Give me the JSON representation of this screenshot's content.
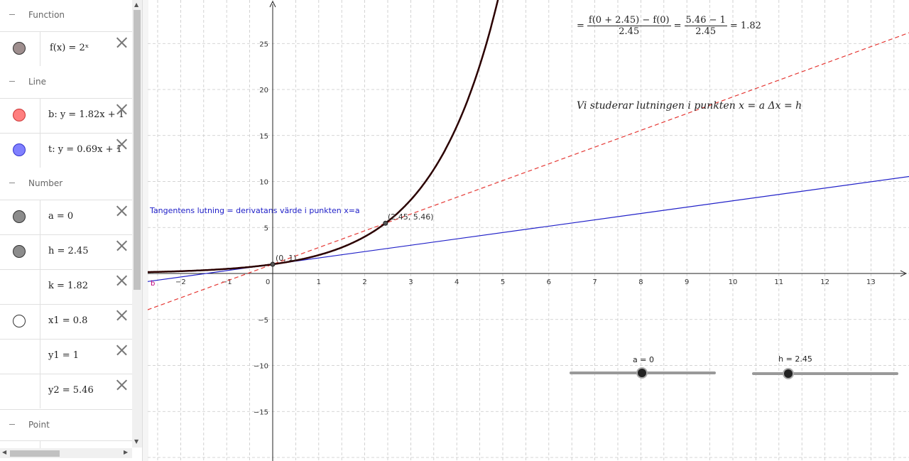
{
  "algebra": {
    "groups": {
      "function": "Function",
      "line": "Line",
      "number": "Number",
      "point": "Point"
    },
    "rows": {
      "f": {
        "expr": "f(x) = 2ˣ",
        "color": "#9e8e8e"
      },
      "b": {
        "expr": "b: y = 1.82x + 1",
        "color": "#ff7f7f"
      },
      "t": {
        "expr": "t: y = 0.69x + 1",
        "color": "#8080ff"
      },
      "a": {
        "expr": "a = 0",
        "color": "#8c8c8c"
      },
      "h": {
        "expr": "h = 2.45",
        "color": "#8c8c8c"
      },
      "k": {
        "expr": "k = 1.82"
      },
      "x1": {
        "expr": "x1 = 0.8",
        "color": "#ffffff"
      },
      "y1": {
        "expr": "y1 = 1"
      },
      "y2": {
        "expr": "y2 = 5.46"
      }
    }
  },
  "graph": {
    "x_ticks": [
      "-2",
      "-1",
      "0",
      "1",
      "2",
      "3",
      "4",
      "5",
      "6",
      "7",
      "8",
      "9",
      "10",
      "11",
      "12",
      "13"
    ],
    "y_ticks": [
      "25",
      "20",
      "15",
      "10",
      "5",
      "-5",
      "-10",
      "-15"
    ],
    "point_a_label": "(0, 1)",
    "point_b_label": "(2.45, 5.46)",
    "line_b_label": "b",
    "tangent_text": "Tangentens lutning = derivatans värde i punkten x=a",
    "formula": {
      "eq": "=",
      "num1": "f(0 + 2.45) − f(0)",
      "den1": "2.45",
      "num2": "5.46 − 1",
      "den2": "2.45",
      "result": "= 1.82"
    },
    "study_text": "Vi studerar lutningen i punkten x = a Δx = h",
    "slider_a_label": "a = 0",
    "slider_h_label": "h = 2.45",
    "colors": {
      "curve": "#2b0000",
      "secant": "#e53935",
      "tangent": "#2020c8"
    }
  }
}
